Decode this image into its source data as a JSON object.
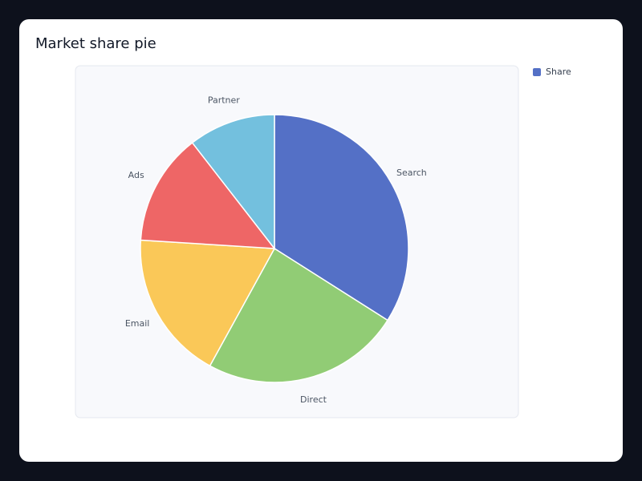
{
  "chart_data": {
    "type": "pie",
    "title": "Market share pie",
    "categories": [
      "Search",
      "Direct",
      "Email",
      "Ads",
      "Partner"
    ],
    "series": [
      {
        "name": "Share",
        "values": [
          34,
          24,
          18,
          13.5,
          10.5
        ],
        "colors": [
          "#5470c6",
          "#91cc75",
          "#fac858",
          "#ee6666",
          "#73c0de"
        ]
      }
    ],
    "legend": "top-right"
  }
}
